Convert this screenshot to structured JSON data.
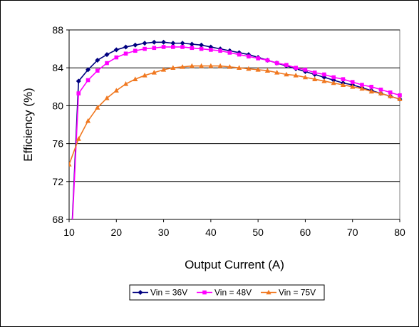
{
  "chart_data": {
    "type": "line",
    "xlabel": "Output Current (A)",
    "ylabel": "Efficiency (%)",
    "xlim": [
      10,
      80
    ],
    "ylim": [
      68,
      88
    ],
    "xticks": [
      10,
      20,
      30,
      40,
      50,
      60,
      70,
      80
    ],
    "yticks": [
      68,
      72,
      76,
      80,
      84,
      88
    ],
    "grid": "horizontal",
    "legend": "bottom",
    "x": [
      10,
      12,
      14,
      16,
      18,
      20,
      22,
      24,
      26,
      28,
      30,
      32,
      34,
      36,
      38,
      40,
      42,
      44,
      46,
      48,
      50,
      52,
      54,
      56,
      58,
      60,
      62,
      64,
      66,
      68,
      70,
      72,
      74,
      76,
      78,
      80
    ],
    "series": [
      {
        "name": "Vin = 36V",
        "color": "#000080",
        "marker": "diamond",
        "values": [
          60.5,
          82.6,
          83.8,
          84.8,
          85.4,
          85.9,
          86.2,
          86.4,
          86.6,
          86.7,
          86.7,
          86.6,
          86.6,
          86.5,
          86.4,
          86.2,
          86.0,
          85.8,
          85.6,
          85.4,
          85.1,
          84.8,
          84.5,
          84.2,
          83.9,
          83.6,
          83.3,
          83.0,
          82.7,
          82.4,
          82.2,
          81.9,
          81.6,
          81.3,
          81.0,
          80.7
        ]
      },
      {
        "name": "Vin = 48V",
        "color": "#ff00ff",
        "marker": "square",
        "values": [
          60.5,
          81.3,
          82.7,
          83.7,
          84.5,
          85.1,
          85.5,
          85.8,
          86.0,
          86.1,
          86.2,
          86.2,
          86.2,
          86.1,
          86.0,
          85.9,
          85.8,
          85.6,
          85.4,
          85.2,
          85.0,
          84.8,
          84.5,
          84.3,
          84.0,
          83.8,
          83.5,
          83.3,
          83.0,
          82.8,
          82.5,
          82.2,
          82.0,
          81.7,
          81.4,
          81.1
        ]
      },
      {
        "name": "Vin = 75V",
        "color": "#f07820",
        "marker": "triangle",
        "values": [
          73.8,
          76.5,
          78.4,
          79.8,
          80.8,
          81.6,
          82.3,
          82.8,
          83.2,
          83.5,
          83.8,
          84.0,
          84.1,
          84.2,
          84.2,
          84.2,
          84.2,
          84.1,
          84.0,
          83.9,
          83.8,
          83.7,
          83.5,
          83.3,
          83.2,
          83.0,
          82.8,
          82.6,
          82.4,
          82.2,
          82.0,
          81.8,
          81.5,
          81.3,
          81.0,
          80.7
        ]
      }
    ]
  }
}
